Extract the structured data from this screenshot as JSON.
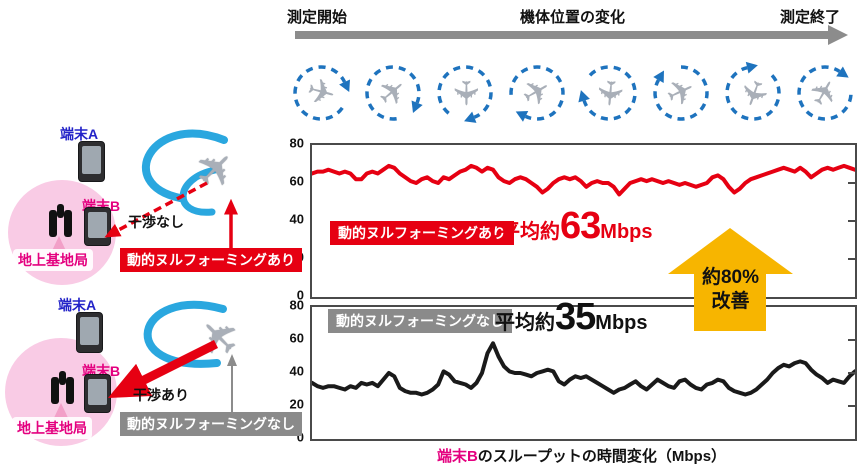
{
  "timeline": {
    "start_label": "測定開始",
    "center_label": "機体位置の変化",
    "end_label": "測定終了"
  },
  "drone_row": {
    "count": 8,
    "rotations": [
      15,
      -40,
      90,
      -30,
      95,
      -25,
      110,
      -60
    ],
    "circle_color": "#1E73BE"
  },
  "scenarios": {
    "with_nullforming": {
      "terminal_a": "端末A",
      "terminal_b": "端末B",
      "base_station": "地上基地局",
      "interference_label": "干渉なし",
      "mode_label": "動的ヌルフォーミングあり"
    },
    "without_nullforming": {
      "terminal_a": "端末A",
      "terminal_b": "端末B",
      "base_station": "地上基地局",
      "interference_label": "干渉あり",
      "mode_label": "動的ヌルフォーミングなし"
    }
  },
  "improvement_arrow": {
    "line1": "約80%",
    "line2": "改善",
    "color": "#F7B500"
  },
  "caption": {
    "highlight": "端末B",
    "rest": "のスループットの時間変化（Mbps）"
  },
  "colors": {
    "with_series": "#E60012",
    "without_series": "#1A1A1A",
    "label_with_bg": "#E60012",
    "label_without_bg": "#8A8A8A",
    "terminal_a_text": "#2323C8",
    "terminal_b_text": "#E4007F",
    "coverage_pink": "#F9CBE5",
    "curve_blue": "#2AA7DF",
    "timeline_gray": "#8C8C8C"
  },
  "chart_data": [
    {
      "type": "line",
      "title": "動的ヌルフォーミングあり",
      "average_label": {
        "prefix": "平均約",
        "value": "63",
        "unit": "Mbps"
      },
      "xlabel": "",
      "ylabel": "",
      "ylim": [
        0,
        80
      ],
      "yticks": [
        0,
        20,
        40,
        60,
        80
      ],
      "grid": false,
      "legend": "none",
      "series": [
        {
          "name": "動的ヌルフォーミングあり",
          "color": "#E60012",
          "values": [
            65,
            66,
            66,
            67,
            66,
            65,
            66,
            65,
            62,
            62,
            65,
            66,
            65,
            67,
            69,
            68,
            65,
            63,
            61,
            60,
            62,
            63,
            61,
            60,
            63,
            62,
            64,
            66,
            67,
            69,
            68,
            66,
            68,
            67,
            63,
            61,
            60,
            62,
            63,
            62,
            60,
            58,
            55,
            57,
            60,
            62,
            63,
            62,
            63,
            61,
            58,
            60,
            61,
            60,
            60,
            58,
            54,
            57,
            60,
            61,
            62,
            61,
            62,
            61,
            60,
            61,
            60,
            59,
            60,
            59,
            58,
            59,
            60,
            63,
            64,
            62,
            58,
            55,
            57,
            60,
            62,
            63,
            64,
            65,
            66,
            67,
            68,
            67,
            66,
            68,
            66,
            63,
            65,
            67,
            68,
            67,
            68,
            69,
            68,
            67
          ]
        }
      ]
    },
    {
      "type": "line",
      "title": "動的ヌルフォーミングなし",
      "average_label": {
        "prefix": "平均約",
        "value": "35",
        "unit": "Mbps"
      },
      "xlabel": "",
      "ylabel": "",
      "ylim": [
        0,
        80
      ],
      "yticks": [
        0,
        20,
        40,
        60,
        80
      ],
      "grid": false,
      "legend": "none",
      "series": [
        {
          "name": "動的ヌルフォーミングなし",
          "color": "#1A1A1A",
          "values": [
            34,
            32,
            31,
            32,
            32,
            31,
            30,
            32,
            31,
            34,
            33,
            34,
            32,
            36,
            40,
            38,
            31,
            29,
            28,
            28,
            27,
            28,
            30,
            33,
            41,
            39,
            35,
            34,
            33,
            31,
            34,
            40,
            52,
            58,
            50,
            44,
            41,
            40,
            40,
            39,
            38,
            40,
            41,
            42,
            41,
            35,
            33,
            36,
            38,
            37,
            38,
            36,
            34,
            32,
            30,
            28,
            30,
            31,
            33,
            35,
            32,
            30,
            33,
            36,
            34,
            32,
            31,
            35,
            36,
            33,
            31,
            30,
            33,
            34,
            36,
            35,
            31,
            29,
            28,
            27,
            28,
            30,
            33,
            36,
            40,
            43,
            45,
            44,
            46,
            47,
            46,
            42,
            39,
            37,
            34,
            36,
            35,
            34,
            38,
            41
          ]
        }
      ]
    }
  ]
}
